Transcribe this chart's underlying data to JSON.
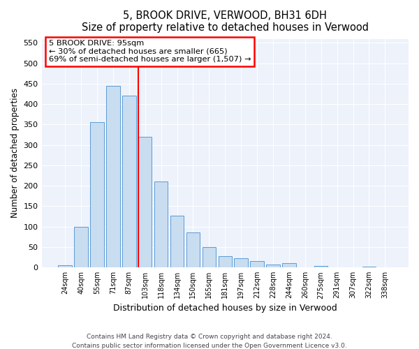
{
  "title1": "5, BROOK DRIVE, VERWOOD, BH31 6DH",
  "title2": "Size of property relative to detached houses in Verwood",
  "xlabel": "Distribution of detached houses by size in Verwood",
  "ylabel": "Number of detached properties",
  "categories": [
    "24sqm",
    "40sqm",
    "55sqm",
    "71sqm",
    "87sqm",
    "103sqm",
    "118sqm",
    "134sqm",
    "150sqm",
    "165sqm",
    "181sqm",
    "197sqm",
    "212sqm",
    "228sqm",
    "244sqm",
    "260sqm",
    "275sqm",
    "291sqm",
    "307sqm",
    "322sqm",
    "338sqm"
  ],
  "values": [
    5,
    100,
    355,
    445,
    420,
    320,
    210,
    127,
    85,
    50,
    27,
    22,
    16,
    8,
    10,
    0,
    3,
    1,
    0,
    2,
    1
  ],
  "bar_color": "#c9ddf0",
  "bar_edge_color": "#5b9bd5",
  "vline_color": "red",
  "vline_x": 4.575,
  "annotation_title": "5 BROOK DRIVE: 95sqm",
  "annotation_line1": "← 30% of detached houses are smaller (665)",
  "annotation_line2": "69% of semi-detached houses are larger (1,507) →",
  "ylim": [
    0,
    560
  ],
  "yticks": [
    0,
    50,
    100,
    150,
    200,
    250,
    300,
    350,
    400,
    450,
    500,
    550
  ],
  "background_color": "#edf2fb",
  "grid_color": "#ffffff",
  "footer1": "Contains HM Land Registry data © Crown copyright and database right 2024.",
  "footer2": "Contains public sector information licensed under the Open Government Licence v3.0."
}
